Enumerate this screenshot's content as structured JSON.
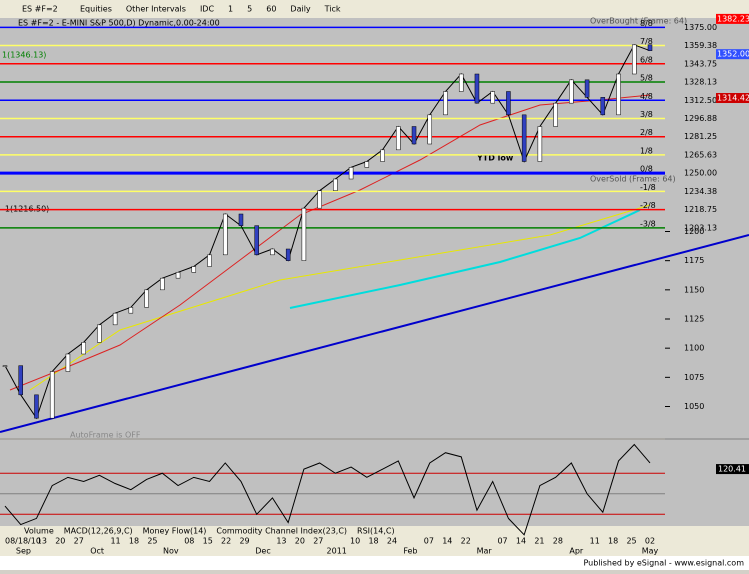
{
  "toolbar": {
    "symbol": "ES #F=2",
    "items": [
      "Equities",
      "Other Intervals",
      "IDC",
      "1",
      "5",
      "60",
      "Daily",
      "Tick"
    ]
  },
  "chart_data": {
    "type": "line",
    "title": "ES #F=2 - E-MINI S&P 500,D) Dynamic,0.00-24:00",
    "values": [
      1085,
      1060,
      1040,
      1080,
      1095,
      1105,
      1120,
      1130,
      1135,
      1150,
      1160,
      1165,
      1170,
      1180,
      1215,
      1205,
      1180,
      1185,
      1175,
      1220,
      1235,
      1245,
      1255,
      1260,
      1270,
      1290,
      1275,
      1300,
      1320,
      1335,
      1310,
      1320,
      1300,
      1260,
      1290,
      1310,
      1330,
      1315,
      1300,
      1335,
      1360,
      1355
    ],
    "color": "#000000",
    "ylim": [
      1023,
      1383
    ],
    "levels": [
      {
        "value": 1375,
        "label": "1375.00",
        "name": "8/8",
        "color": "#0000ff"
      },
      {
        "value": 1359.38,
        "label": "1359.38",
        "name": "7/8",
        "color": "#ffff66"
      },
      {
        "value": 1343.75,
        "label": "1343.75",
        "name": "6/8",
        "color": "#ff0000"
      },
      {
        "value": 1328.13,
        "label": "1328.13",
        "name": "5/8",
        "color": "#008000"
      },
      {
        "value": 1312.5,
        "label": "1312.50",
        "name": "4/8",
        "color": "#0000ff"
      },
      {
        "value": 1296.88,
        "label": "1296.88",
        "name": "3/8",
        "color": "#ffff66"
      },
      {
        "value": 1281.25,
        "label": "1281.25",
        "name": "2/8",
        "color": "#ff0000"
      },
      {
        "value": 1265.63,
        "label": "1265.63",
        "name": "1/8",
        "color": "#ffff66"
      },
      {
        "value": 1250,
        "label": "1250.00",
        "name": "0/8",
        "color": "#0000ff"
      },
      {
        "value": 1234.38,
        "label": "1234.38",
        "name": "-1/8",
        "color": "#ffff66"
      },
      {
        "value": 1218.75,
        "label": "1218.75",
        "name": "-2/8",
        "color": "#ff0000"
      },
      {
        "value": 1203.13,
        "label": "1203.13",
        "name": "-3/8",
        "color": "#008000"
      }
    ],
    "yticks": [
      1200,
      1175,
      1150,
      1125,
      1100,
      1075,
      1050
    ],
    "markers": [
      {
        "value": 1382.23,
        "label": "1382.23",
        "color": "#ff0000"
      },
      {
        "value": 1352,
        "label": "1352.00",
        "color": "#3050ff"
      },
      {
        "value": 1314.42,
        "label": "1314.42",
        "color": "#cc0000"
      }
    ],
    "annotations": [
      "YTD low",
      "OverBought (Frame: 64)",
      "OverSold (Frame: 64)",
      "1(1346.13)",
      "-1(1216.50)",
      "AutoFrame is OFF"
    ],
    "cci": {
      "values": [
        -60,
        -150,
        -120,
        40,
        80,
        60,
        90,
        50,
        20,
        70,
        100,
        40,
        80,
        60,
        150,
        60,
        -100,
        -20,
        -140,
        120,
        150,
        100,
        130,
        80,
        120,
        160,
        -20,
        150,
        200,
        180,
        -80,
        60,
        -120,
        -200,
        40,
        80,
        150,
        0,
        -90,
        160,
        240,
        150
      ],
      "ylim": [
        -157,
        262
      ],
      "yticks": [
        100,
        0,
        -100
      ],
      "marker": {
        "value": 120.41,
        "label": "120.41"
      }
    },
    "week_labels": [
      "08/18/10",
      "",
      "13",
      "20",
      "27",
      "",
      "11",
      "18",
      "25",
      "",
      "08",
      "15",
      "22",
      "29",
      "",
      "13",
      "20",
      "27",
      "",
      "10",
      "18",
      "24",
      "",
      "07",
      "14",
      "22",
      "",
      "07",
      "14",
      "21",
      "28",
      "",
      "11",
      "18",
      "25",
      "02"
    ],
    "month_labels": [
      null,
      "Sep",
      null,
      null,
      null,
      "Oct",
      null,
      null,
      null,
      "Nov",
      null,
      null,
      null,
      null,
      "Dec",
      null,
      null,
      null,
      "2011",
      null,
      null,
      null,
      "Feb",
      null,
      null,
      null,
      "Mar",
      null,
      null,
      null,
      null,
      "Apr",
      null,
      null,
      null,
      "May"
    ]
  },
  "tabs": [
    "Volume",
    "MACD(12,26,9,C)",
    "Money Flow(14)",
    "Commodity Channel Index(23,C)",
    "RSI(14,C)"
  ],
  "footer": "Published by eSignal - www.esignal.com"
}
